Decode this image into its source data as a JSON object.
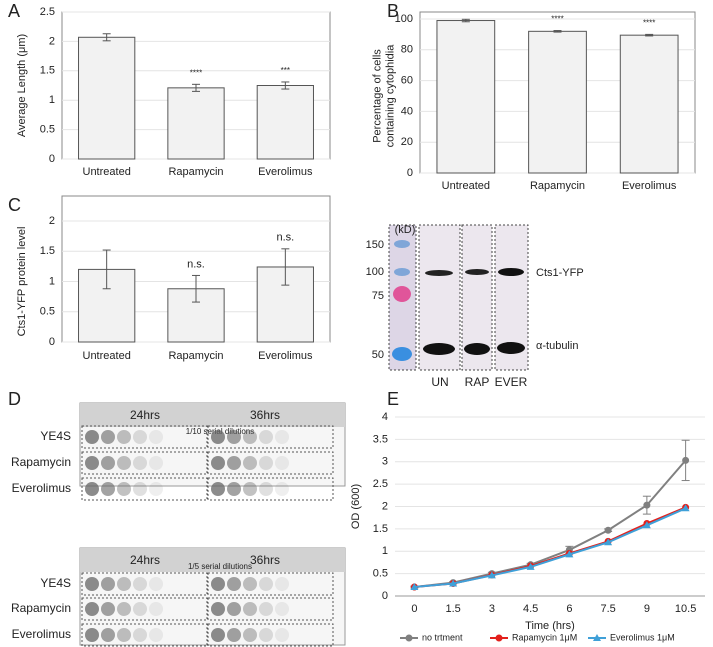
{
  "panel_labels": [
    "A",
    "B",
    "C",
    "D",
    "E"
  ],
  "chart_data": [
    {
      "type": "bar",
      "y_label": [
        "Average Length (μm)"
      ],
      "categories": [
        "Untreated",
        "Rapamycin",
        "Everolimus"
      ],
      "values": [
        2.07,
        1.21,
        1.25
      ],
      "errors": [
        0.06,
        0.06,
        0.06
      ],
      "annotations": [
        null,
        "****",
        "***"
      ],
      "color": "#f2f2f2",
      "ylim": [
        0,
        2.5
      ],
      "yticks": [
        0,
        0.5,
        1,
        1.5,
        2,
        2.5
      ],
      "grid": true
    },
    {
      "type": "bar",
      "y_label": [
        "Percentage of cells",
        "containing cytophidia"
      ],
      "categories": [
        "Untreated",
        "Rapamycin",
        "Everolimus"
      ],
      "values": [
        99,
        92,
        89.5
      ],
      "errors": [
        0.8,
        0.5,
        0.5
      ],
      "annotations": [
        null,
        "****",
        "****"
      ],
      "color": "#f2f2f2",
      "ylim": [
        0,
        100
      ],
      "yticks": [
        0,
        20,
        40,
        60,
        80,
        100
      ],
      "grid": true
    },
    {
      "type": "bar",
      "y_label": [
        "Cts1-YFP protein level"
      ],
      "categories": [
        "Untreated",
        "Rapamycin",
        "Everolimus"
      ],
      "values": [
        1.2,
        0.88,
        1.24
      ],
      "errors": [
        0.32,
        0.22,
        0.3
      ],
      "annotations": [
        null,
        "n.s.",
        "n.s."
      ],
      "color": "#f2f2f2",
      "ylim": [
        0,
        2
      ],
      "yticks": [
        0,
        0.5,
        1,
        1.5,
        2
      ],
      "grid": true
    },
    {
      "type": "line",
      "y_label": [
        "OD (600)"
      ],
      "x_label": "Time (hrs)",
      "categories": [
        "0",
        "1.5",
        "3",
        "4.5",
        "6",
        "7.5",
        "9",
        "10.5"
      ],
      "series": [
        {
          "name": "no trtment",
          "color": "#808080",
          "marker": "circle",
          "values": [
            0.2,
            0.3,
            0.5,
            0.7,
            1.03,
            1.47,
            2.03,
            3.03
          ],
          "errors": [
            0.02,
            0.02,
            0.03,
            0.03,
            0.08,
            0.03,
            0.2,
            0.45
          ]
        },
        {
          "name": "Rapamycin 1μM",
          "color": "#e3201c",
          "marker": "circle",
          "values": [
            0.2,
            0.28,
            0.47,
            0.67,
            0.95,
            1.22,
            1.62,
            1.98
          ]
        },
        {
          "name": "Everolimus 1μM",
          "color": "#3fa0d8",
          "marker": "triangle",
          "values": [
            0.2,
            0.28,
            0.46,
            0.65,
            0.93,
            1.2,
            1.58,
            1.96
          ]
        }
      ],
      "ylim": [
        0,
        4
      ],
      "yticks": [
        0,
        0.5,
        1,
        1.5,
        2,
        2.5,
        3,
        3.5,
        4
      ],
      "grid": true,
      "legend": "bottom"
    }
  ],
  "blot": {
    "unit": "(kD)",
    "markers": [
      "150",
      "100",
      "75",
      "50"
    ],
    "bands": [
      "Cts1-YFP",
      "α-tubulin"
    ],
    "lanes": [
      "UN",
      "RAP",
      "EVER"
    ]
  },
  "spot_assay": [
    {
      "times": [
        "24hrs",
        "36hrs"
      ],
      "dilution": "1/10 serial dilutions",
      "rows": [
        "YE4S",
        "Rapamycin",
        "Everolimus"
      ]
    },
    {
      "times": [
        "24hrs",
        "36hrs"
      ],
      "dilution": "1/5 serial dilutions",
      "rows": [
        "YE4S",
        "Rapamycin",
        "Everolimus"
      ]
    }
  ]
}
